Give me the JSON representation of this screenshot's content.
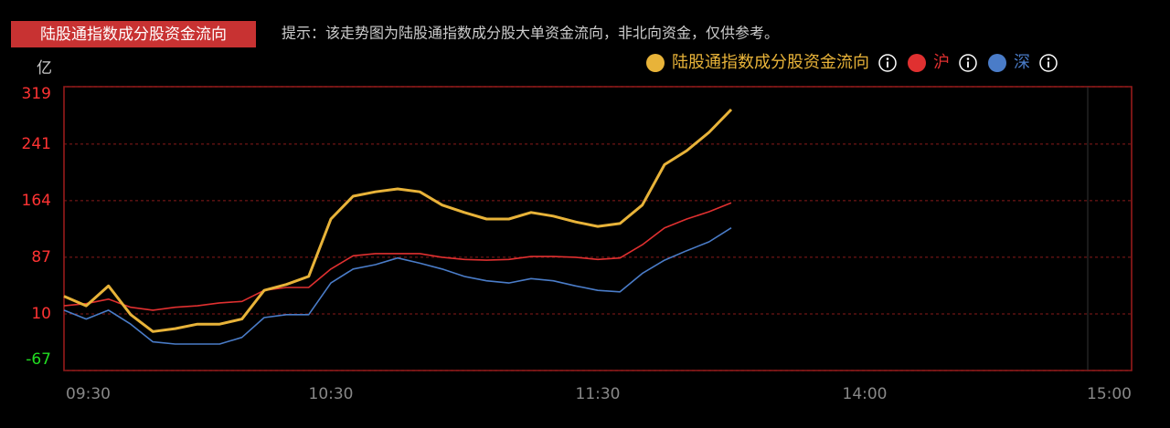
{
  "chart_data": {
    "type": "line",
    "title": "陆股通指数成分股资金流向",
    "subtitle": "提示：该走势图为陆股通指数成分股大单资金流向，非北向资金，仅供参考。",
    "ylabel": "亿",
    "x": [
      0,
      5,
      10,
      15,
      20,
      25,
      30,
      35,
      40,
      45,
      50,
      55,
      60,
      65,
      70,
      75,
      80,
      85,
      90,
      95,
      100,
      105,
      110,
      115,
      120,
      125,
      130,
      135,
      140,
      145,
      150
    ],
    "xlim": [
      0,
      240
    ],
    "xticks": [
      {
        "value": 0,
        "label": "09:30"
      },
      {
        "value": 60,
        "label": "10:30"
      },
      {
        "value": 120,
        "label": "11:30"
      },
      {
        "value": 180,
        "label": "14:00"
      },
      {
        "value": 240,
        "label": "15:00"
      }
    ],
    "ylim": [
      -67,
      319
    ],
    "yticks": [
      319,
      241,
      164,
      87,
      10,
      -67
    ],
    "grid": true,
    "legend": "top-right",
    "series": [
      {
        "name": "陆股通指数成分股资金流向",
        "color": "#e8b339",
        "values": [
          34,
          21,
          48,
          9,
          -14,
          -10,
          -4,
          -4,
          3,
          42,
          50,
          61,
          139,
          170,
          176,
          180,
          176,
          158,
          148,
          139,
          139,
          148,
          143,
          135,
          129,
          133,
          158,
          213,
          232,
          257,
          288
        ]
      },
      {
        "name": "沪",
        "color": "#e03030",
        "values": [
          21,
          24,
          30,
          19,
          15,
          19,
          21,
          25,
          27,
          42,
          46,
          46,
          71,
          89,
          92,
          92,
          92,
          87,
          84,
          83,
          84,
          88,
          88,
          87,
          84,
          86,
          104,
          127,
          139,
          149,
          161
        ]
      },
      {
        "name": "深",
        "color": "#4a7cc8",
        "values": [
          15,
          3,
          15,
          -4,
          -28,
          -31,
          -31,
          -31,
          -22,
          5,
          9,
          9,
          52,
          71,
          77,
          86,
          79,
          71,
          61,
          55,
          52,
          58,
          55,
          48,
          42,
          40,
          65,
          83,
          96,
          108,
          127
        ]
      }
    ]
  }
}
